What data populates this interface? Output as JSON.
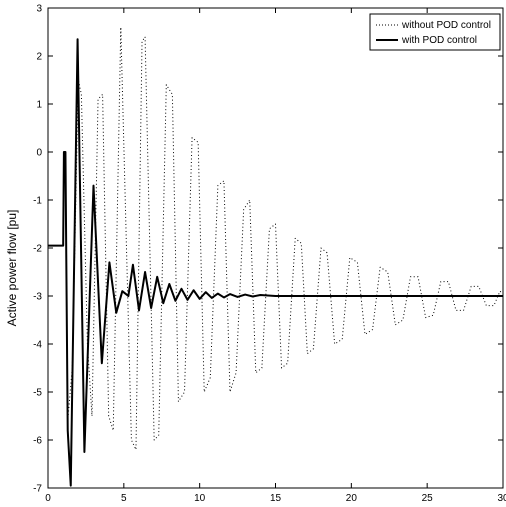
{
  "chart_data": {
    "type": "line",
    "ylabel": "Active power flow [pu]",
    "xlabel": "",
    "xlim": [
      0,
      30
    ],
    "ylim": [
      -7,
      3
    ],
    "xticks": [
      0,
      5,
      10,
      15,
      20,
      25,
      30
    ],
    "yticks": [
      3,
      2,
      1,
      0,
      -1,
      -2,
      -3,
      -4,
      -5,
      -6,
      -7
    ],
    "grid": false,
    "legend_position": "top-right",
    "series": [
      {
        "name": "without POD control",
        "style": "dotted",
        "color": "#000000",
        "points": [
          [
            0,
            -1.95
          ],
          [
            0.9,
            -1.95
          ],
          [
            1.0,
            -1.95
          ],
          [
            1.05,
            0
          ],
          [
            1.15,
            0
          ],
          [
            1.2,
            -2.0
          ],
          [
            1.3,
            -5.6
          ],
          [
            1.6,
            -4.5
          ],
          [
            2.0,
            1.5
          ],
          [
            2.2,
            1.2
          ],
          [
            2.6,
            -4.0
          ],
          [
            2.9,
            -5.5
          ],
          [
            3.3,
            1.1
          ],
          [
            3.6,
            1.2
          ],
          [
            4.0,
            -5.5
          ],
          [
            4.3,
            -5.8
          ],
          [
            4.8,
            2.6
          ],
          [
            5.5,
            -6.0
          ],
          [
            5.8,
            -6.2
          ],
          [
            6.2,
            2.3
          ],
          [
            6.4,
            2.4
          ],
          [
            7.0,
            -6.0
          ],
          [
            7.3,
            -5.9
          ],
          [
            7.8,
            1.4
          ],
          [
            8.2,
            1.2
          ],
          [
            8.6,
            -5.2
          ],
          [
            9.0,
            -5.0
          ],
          [
            9.5,
            0.3
          ],
          [
            9.9,
            0.2
          ],
          [
            10.3,
            -5.0
          ],
          [
            10.7,
            -4.7
          ],
          [
            11.2,
            -0.7
          ],
          [
            11.6,
            -0.6
          ],
          [
            12.0,
            -5.0
          ],
          [
            12.4,
            -4.6
          ],
          [
            12.9,
            -1.2
          ],
          [
            13.3,
            -1.0
          ],
          [
            13.7,
            -4.6
          ],
          [
            14.1,
            -4.5
          ],
          [
            14.6,
            -1.6
          ],
          [
            15.0,
            -1.5
          ],
          [
            15.4,
            -4.5
          ],
          [
            15.8,
            -4.4
          ],
          [
            16.3,
            -1.8
          ],
          [
            16.7,
            -1.9
          ],
          [
            17.1,
            -4.2
          ],
          [
            17.5,
            -4.1
          ],
          [
            18.0,
            -2.0
          ],
          [
            18.4,
            -2.1
          ],
          [
            18.9,
            -4.0
          ],
          [
            19.4,
            -3.9
          ],
          [
            19.9,
            -2.2
          ],
          [
            20.4,
            -2.3
          ],
          [
            20.9,
            -3.8
          ],
          [
            21.4,
            -3.7
          ],
          [
            21.9,
            -2.4
          ],
          [
            22.4,
            -2.5
          ],
          [
            22.9,
            -3.6
          ],
          [
            23.4,
            -3.5
          ],
          [
            23.9,
            -2.6
          ],
          [
            24.4,
            -2.6
          ],
          [
            24.9,
            -3.45
          ],
          [
            25.4,
            -3.4
          ],
          [
            25.9,
            -2.7
          ],
          [
            26.4,
            -2.7
          ],
          [
            26.9,
            -3.3
          ],
          [
            27.4,
            -3.3
          ],
          [
            27.9,
            -2.8
          ],
          [
            28.4,
            -2.8
          ],
          [
            28.9,
            -3.2
          ],
          [
            29.4,
            -3.2
          ],
          [
            29.8,
            -2.9
          ],
          [
            30.0,
            -2.95
          ]
        ]
      },
      {
        "name": "with POD control",
        "style": "solid",
        "color": "#000000",
        "points": [
          [
            0,
            -1.95
          ],
          [
            0.9,
            -1.95
          ],
          [
            1.0,
            -1.95
          ],
          [
            1.05,
            0
          ],
          [
            1.15,
            0
          ],
          [
            1.2,
            -2.0
          ],
          [
            1.3,
            -5.8
          ],
          [
            1.5,
            -6.95
          ],
          [
            1.95,
            2.35
          ],
          [
            2.4,
            -6.25
          ],
          [
            3.0,
            -0.7
          ],
          [
            3.55,
            -4.4
          ],
          [
            4.05,
            -2.3
          ],
          [
            4.5,
            -3.35
          ],
          [
            4.9,
            -2.9
          ],
          [
            5.3,
            -3.0
          ],
          [
            5.6,
            -2.35
          ],
          [
            6.0,
            -3.3
          ],
          [
            6.4,
            -2.5
          ],
          [
            6.8,
            -3.25
          ],
          [
            7.2,
            -2.6
          ],
          [
            7.6,
            -3.15
          ],
          [
            8.0,
            -2.75
          ],
          [
            8.4,
            -3.1
          ],
          [
            8.8,
            -2.85
          ],
          [
            9.2,
            -3.08
          ],
          [
            9.6,
            -2.88
          ],
          [
            10.0,
            -3.06
          ],
          [
            10.4,
            -2.92
          ],
          [
            10.8,
            -3.04
          ],
          [
            11.2,
            -2.95
          ],
          [
            11.6,
            -3.03
          ],
          [
            12.0,
            -2.96
          ],
          [
            12.5,
            -3.02
          ],
          [
            13.0,
            -2.97
          ],
          [
            13.5,
            -3.01
          ],
          [
            14.0,
            -2.98
          ],
          [
            15.0,
            -3.0
          ],
          [
            20.0,
            -3.0
          ],
          [
            25.0,
            -3.0
          ],
          [
            30.0,
            -3.0
          ]
        ]
      }
    ]
  }
}
